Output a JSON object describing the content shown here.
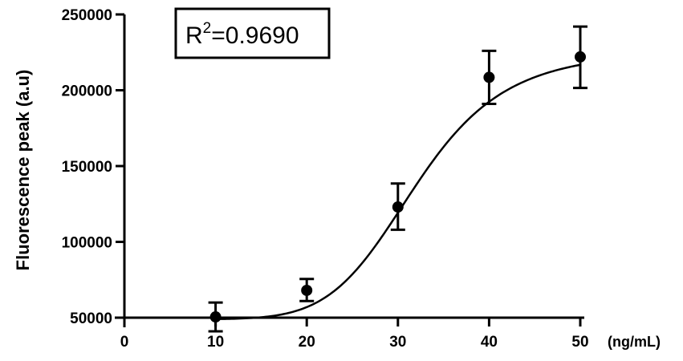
{
  "chart_data": {
    "type": "scatter",
    "title": "",
    "xlabel": "(ng/mL)",
    "ylabel": "Fluorescence peak (a.u)",
    "xlim": [
      0,
      50
    ],
    "ylim": [
      50000,
      250000
    ],
    "x_ticks": [
      "0",
      "10",
      "20",
      "30",
      "40",
      "50"
    ],
    "y_ticks": [
      "50000",
      "100000",
      "150000",
      "200000",
      "250000"
    ],
    "points": [
      {
        "x": 10,
        "y": 50500,
        "err_low": 41000,
        "err_high": 60000
      },
      {
        "x": 20,
        "y": 68000,
        "err_low": 61000,
        "err_high": 75500
      },
      {
        "x": 30,
        "y": 123000,
        "err_low": 108000,
        "err_high": 138500
      },
      {
        "x": 40,
        "y": 208500,
        "err_low": 191000,
        "err_high": 226000
      },
      {
        "x": 50,
        "y": 222000,
        "err_low": 201500,
        "err_high": 242000
      }
    ],
    "fit": {
      "type": "sigmoidal",
      "bottom": 49000,
      "top": 226000,
      "ec50": 32,
      "hill": 6.5
    },
    "annotation": {
      "r2_prefix": "R",
      "r2_sup": "2",
      "r2_value": "=0.9690"
    },
    "grid": false,
    "legend": "none"
  }
}
